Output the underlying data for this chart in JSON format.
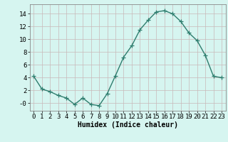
{
  "x": [
    0,
    1,
    2,
    3,
    4,
    5,
    6,
    7,
    8,
    9,
    10,
    11,
    12,
    13,
    14,
    15,
    16,
    17,
    18,
    19,
    20,
    21,
    22,
    23
  ],
  "y": [
    4.2,
    2.2,
    1.8,
    1.2,
    0.8,
    -0.2,
    0.8,
    -0.2,
    -0.4,
    1.5,
    4.3,
    7.2,
    9.0,
    11.5,
    13.0,
    14.3,
    14.5,
    14.0,
    12.8,
    11.0,
    9.8,
    7.5,
    4.2,
    4.0
  ],
  "xlabel": "Humidex (Indice chaleur)",
  "ylim": [
    -1.2,
    15.5
  ],
  "xlim": [
    -0.5,
    23.5
  ],
  "yticks": [
    0,
    2,
    4,
    6,
    8,
    10,
    12,
    14
  ],
  "ytick_labels": [
    "-0",
    "2",
    "4",
    "6",
    "8",
    "10",
    "12",
    "14"
  ],
  "xtick_labels": [
    "0",
    "1",
    "2",
    "3",
    "4",
    "5",
    "6",
    "7",
    "8",
    "9",
    "10",
    "11",
    "12",
    "13",
    "14",
    "15",
    "16",
    "17",
    "18",
    "19",
    "20",
    "21",
    "22",
    "23"
  ],
  "line_color": "#2e7d6e",
  "marker": "+",
  "marker_size": 4,
  "line_width": 1.0,
  "bg_color": "#d6f5f0",
  "grid_color": "#c8b8b8",
  "xlabel_fontsize": 7,
  "tick_fontsize": 6.5
}
